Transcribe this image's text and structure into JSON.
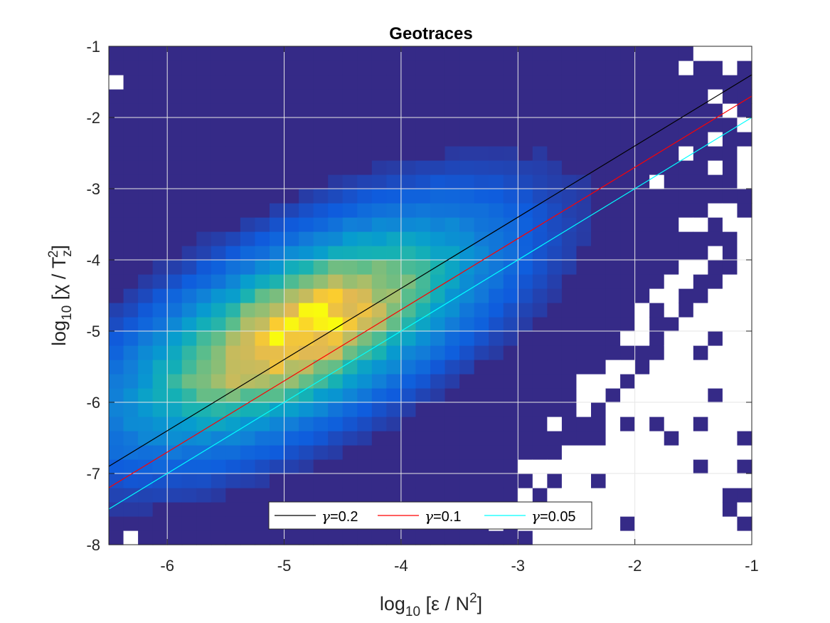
{
  "chart_data": {
    "type": "heatmap",
    "title": "Geotraces",
    "xlabel": {
      "prefix": "log",
      "sub": "10",
      "text": " [ε / N",
      "sup": "2",
      "suffix": "]"
    },
    "ylabel": {
      "prefix": "log",
      "sub": "10",
      "text": " [χ / T",
      "sub2": "z",
      "sup": "2",
      "suffix": "]"
    },
    "xlim": [
      -6.5,
      -1
    ],
    "ylim": [
      -8,
      -1
    ],
    "x_ticks": [
      -6,
      -5,
      -4,
      -3,
      -2,
      -1
    ],
    "x_tick_labels": [
      "-6",
      "-5",
      "-4",
      "-3",
      "-2",
      "-1"
    ],
    "y_ticks": [
      -8,
      -7,
      -6,
      -5,
      -4,
      -3,
      -2,
      -1
    ],
    "y_tick_labels": [
      "-8",
      "-7",
      "-6",
      "-5",
      "-4",
      "-3",
      "-2",
      "-1"
    ],
    "grid": true,
    "colormap": "parula",
    "bin_width": 0.125,
    "bin_height": 0.2,
    "density_peak": {
      "x": -4.85,
      "y": -5.0
    },
    "empty_bins_note": "white cells are empty bins",
    "series": [
      {
        "name": "γ=0.2",
        "color": "#000000",
        "x": [
          -6.5,
          -1
        ],
        "y": [
          -6.9,
          -1.4
        ]
      },
      {
        "name": "γ=0.1",
        "color": "#ff0000",
        "x": [
          -6.5,
          -1
        ],
        "y": [
          -7.2,
          -1.7
        ]
      },
      {
        "name": "γ=0.05",
        "color": "#00ffff",
        "x": [
          -6.5,
          -1
        ],
        "y": [
          -7.5,
          -2.0
        ]
      }
    ],
    "legend": {
      "location": "bottom-center",
      "orientation": "horizontal",
      "entries": [
        {
          "label": "γ=0.2",
          "symbol": "γ",
          "text": "=0.2",
          "color": "#000000"
        },
        {
          "label": "γ=0.1",
          "symbol": "γ",
          "text": "=0.1",
          "color": "#ff0000"
        },
        {
          "label": "γ=0.05",
          "symbol": "γ",
          "text": "=0.05",
          "color": "#00ffff"
        }
      ]
    }
  }
}
